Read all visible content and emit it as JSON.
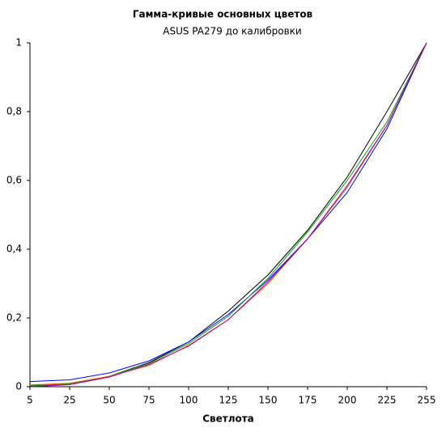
{
  "chart_data": {
    "type": "line",
    "title": "Гамма-кривые  основных цветов",
    "subtitle": "ASUS PA279 до калибровки",
    "x_label": "Светлота",
    "categories": [
      "5",
      "25",
      "50",
      "75",
      "100",
      "125",
      "150",
      "175",
      "200",
      "225",
      "255"
    ],
    "series": [
      {
        "color": "#000000",
        "values": [
          0.002,
          0.008,
          0.03,
          0.07,
          0.13,
          0.22,
          0.325,
          0.455,
          0.61,
          0.8,
          1
        ]
      },
      {
        "color": "#0000ff",
        "values": [
          0.015,
          0.02,
          0.04,
          0.075,
          0.13,
          0.21,
          0.31,
          0.43,
          0.565,
          0.75,
          1
        ]
      },
      {
        "color": "#00aa00",
        "values": [
          0.003,
          0.008,
          0.03,
          0.068,
          0.125,
          0.205,
          0.315,
          0.45,
          0.6,
          0.77,
          1
        ]
      },
      {
        "color": "#e05000",
        "values": [
          0.005,
          0.01,
          0.03,
          0.062,
          0.12,
          0.195,
          0.3,
          0.43,
          0.58,
          0.76,
          1
        ]
      },
      {
        "color": "#aa00aa",
        "values": [
          0,
          0.006,
          0.028,
          0.065,
          0.118,
          0.195,
          0.305,
          0.43,
          0.585,
          0.76,
          1
        ]
      }
    ],
    "ylim": [
      0,
      1
    ],
    "yticks": [
      0,
      {
        "value": 0.2,
        "label": "0,2"
      },
      {
        "value": 0.4,
        "label": "0,4"
      },
      {
        "value": 0.6,
        "label": "0,6"
      },
      {
        "value": 0.8,
        "label": "0,8"
      },
      1
    ]
  }
}
